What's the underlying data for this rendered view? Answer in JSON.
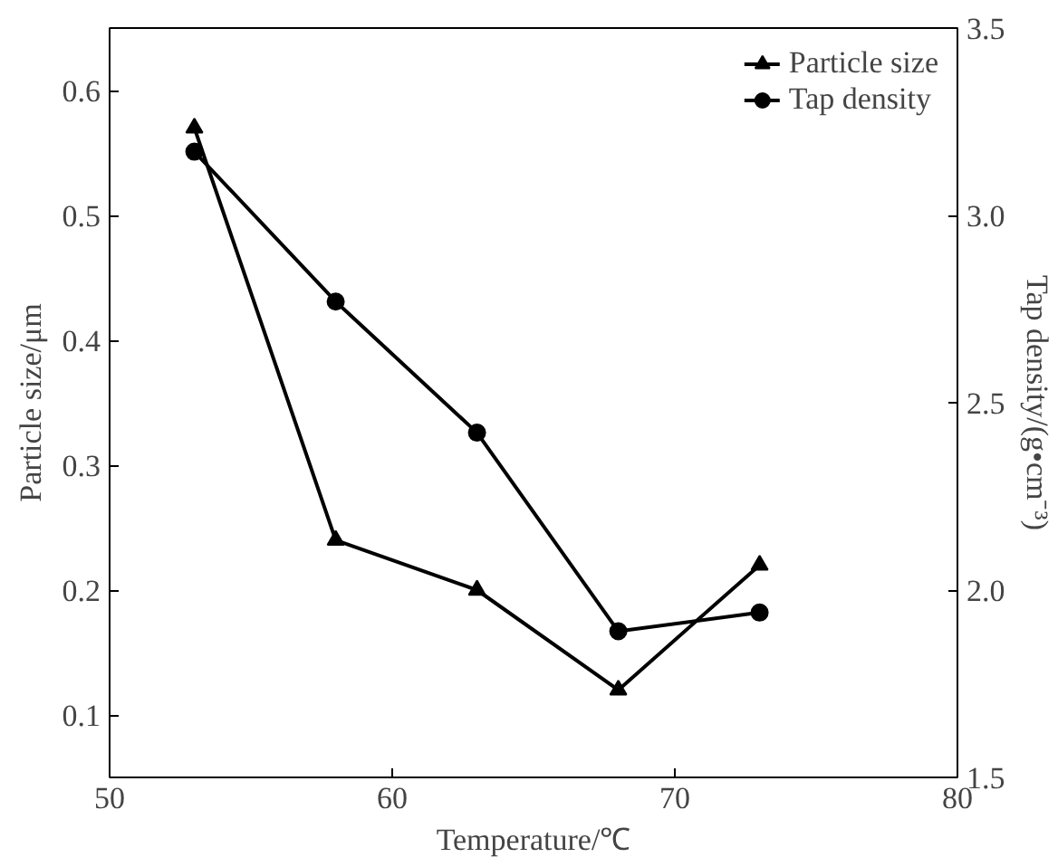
{
  "chart_data": {
    "type": "line",
    "xlabel": "Temperature/℃",
    "ylabel": "Particle size/μm",
    "y2label": "Tap density/(g•cm⁻³)",
    "x": [
      53,
      58,
      63,
      68,
      73
    ],
    "series": [
      {
        "name": "Particle size",
        "color": "#000000",
        "marker": "triangle",
        "values": [
          0.57,
          0.24,
          0.2,
          0.12,
          0.22
        ]
      },
      {
        "name": "Tap density",
        "color": "#000000",
        "marker": "circle",
        "axis": "y2",
        "values": [
          3.17,
          2.77,
          2.42,
          1.89,
          1.94
        ]
      }
    ],
    "xlim": [
      50,
      80
    ],
    "xticks": [
      50,
      60,
      70,
      80
    ],
    "ylim": [
      0.05,
      0.65
    ],
    "yticks": [
      0.1,
      0.2,
      0.3,
      0.4,
      0.5,
      0.6
    ],
    "y2lim": [
      1.5,
      3.5
    ],
    "y2ticks": [
      1.5,
      {
        "value": 2,
        "label": "2.0"
      },
      2.5,
      {
        "value": 3,
        "label": "3.0"
      },
      3.5
    ],
    "grid": false,
    "legend": "top right",
    "line_style": "solid"
  }
}
